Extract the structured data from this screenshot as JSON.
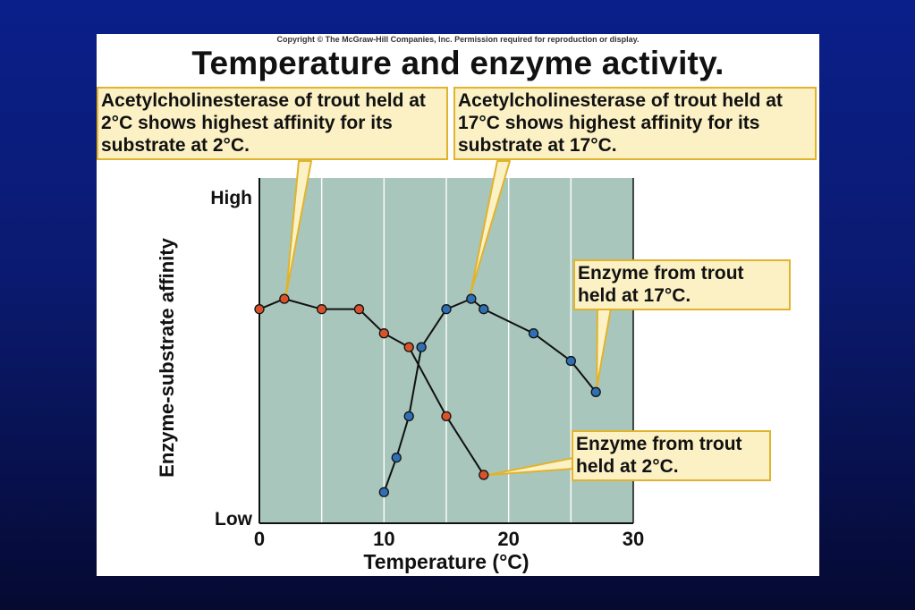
{
  "copyright": "Copyright © The McGraw-Hill Companies, Inc. Permission required for reproduction or display.",
  "title": "Temperature and enzyme activity.",
  "callouts": {
    "trout2_top": "Acetylcholinesterase of trout held at 2°C shows highest affinity for its substrate at 2°C.",
    "trout17_top": "Acetylcholinesterase of trout held at 17°C shows highest affinity for its substrate at 17°C.",
    "enzyme17": "Enzyme from trout held at 17°C.",
    "enzyme2": "Enzyme from trout held at 2°C."
  },
  "colors": {
    "plot_bg": "#a8c6bb",
    "callout_bg": "#fbf1c4",
    "callout_border": "#e0b32c",
    "trout2_marker": "#d9532a",
    "trout17_marker": "#2f6fb3"
  },
  "chart_data": {
    "type": "line",
    "title": "Temperature and enzyme activity.",
    "xlabel": "Temperature (°C)",
    "ylabel": "Enzyme-substrate affinity",
    "xlim": [
      0,
      30
    ],
    "ylim": [
      0,
      10
    ],
    "xticks": [
      0,
      10,
      20,
      30
    ],
    "xtick_labels": [
      "0",
      "10",
      "20",
      "30"
    ],
    "yticks": [
      0,
      10
    ],
    "ytick_labels": [
      "Low",
      "High"
    ],
    "grid": "vertical lines every 5",
    "legend": "none",
    "series": [
      {
        "name": "Enzyme from trout held at 2°C.",
        "x": [
          0,
          2,
          5,
          8,
          10,
          12,
          15,
          18
        ],
        "y": [
          6.2,
          6.5,
          6.2,
          6.2,
          5.5,
          5.1,
          3.1,
          1.4
        ]
      },
      {
        "name": "Enzyme from trout held at 17°C.",
        "x": [
          10,
          11,
          12,
          13,
          15,
          17,
          18,
          22,
          25,
          27
        ],
        "y": [
          0.9,
          1.9,
          3.1,
          5.1,
          6.2,
          6.5,
          6.2,
          5.5,
          4.7,
          3.8
        ]
      }
    ]
  }
}
